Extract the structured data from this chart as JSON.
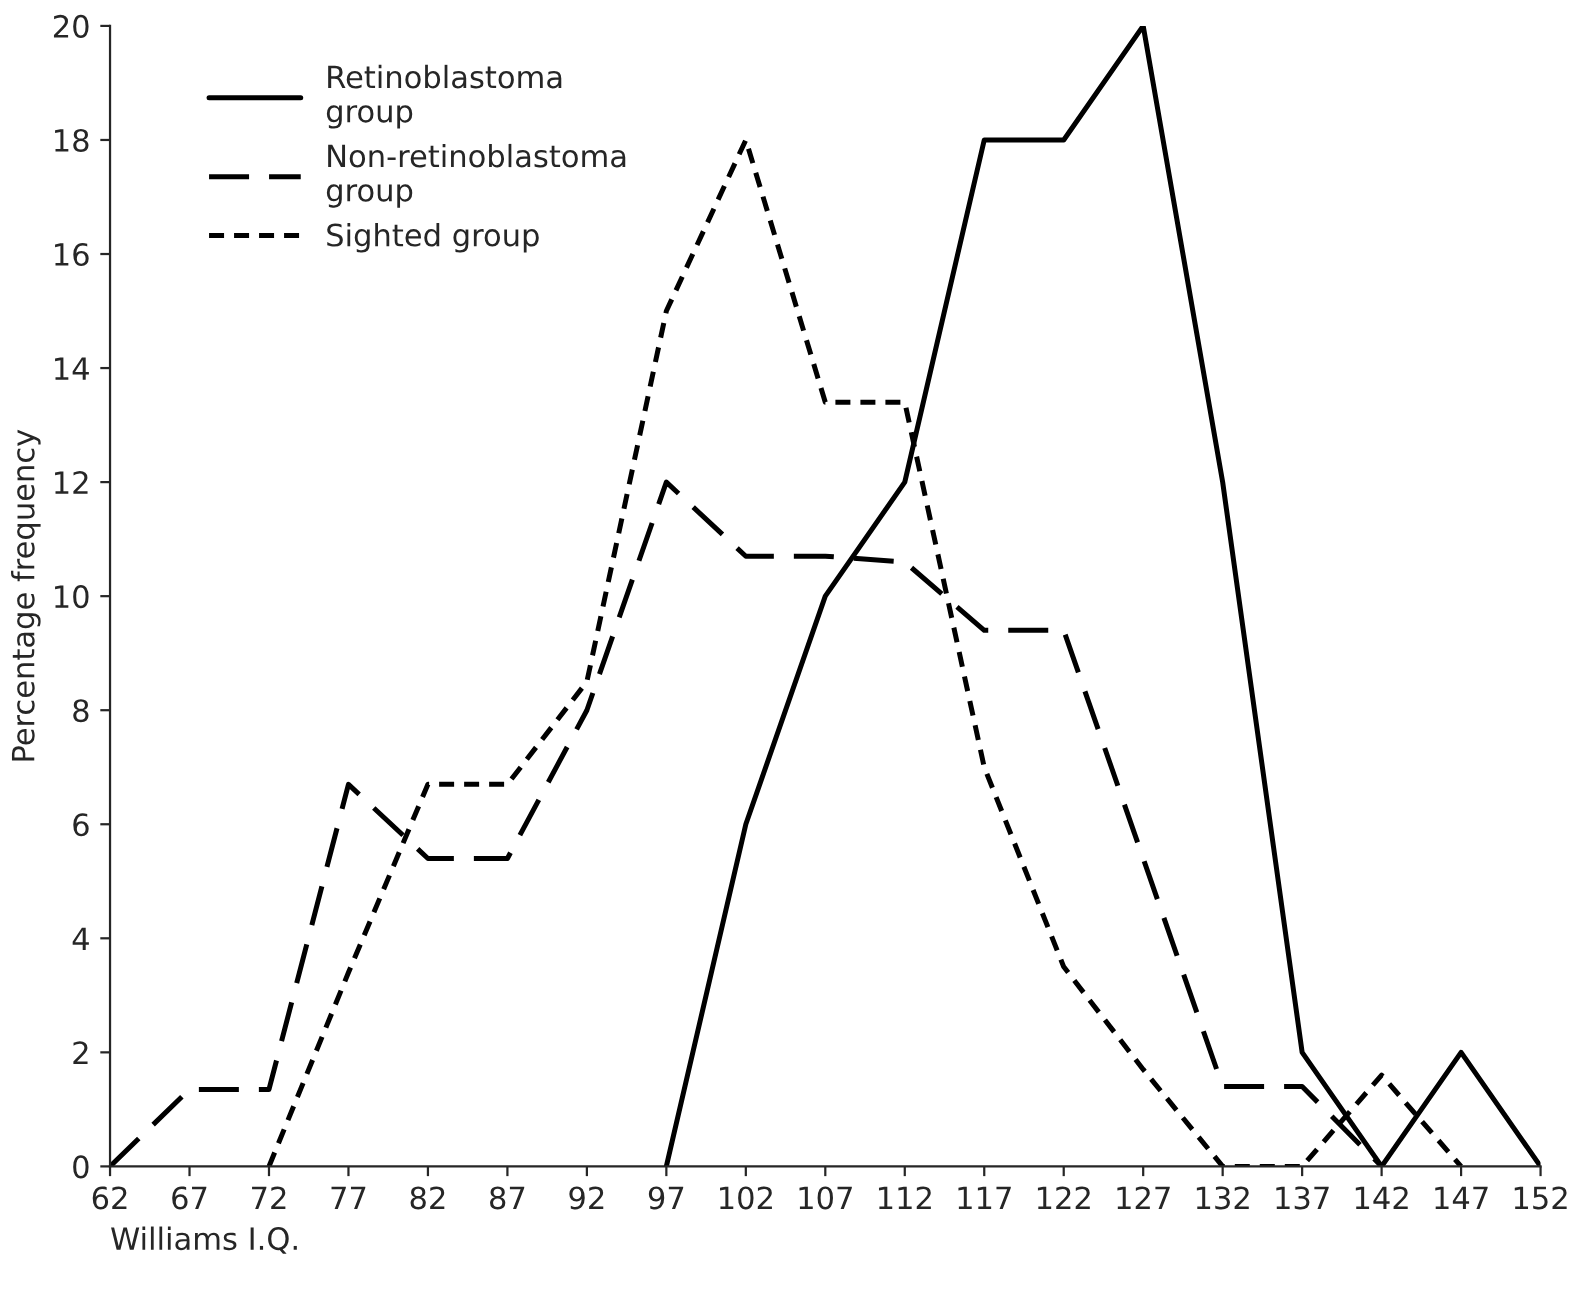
{
  "chart_data": {
    "type": "line",
    "xlabel": "Williams I.Q.",
    "ylabel": "Percentage frequency",
    "x": [
      62,
      67,
      72,
      77,
      82,
      87,
      92,
      97,
      102,
      107,
      112,
      117,
      122,
      127,
      132,
      137,
      142,
      147,
      152
    ],
    "series": [
      {
        "name": "Retinoblastoma\ngroup",
        "color": "#000000",
        "line_style": "solid",
        "values": [
          null,
          null,
          null,
          null,
          null,
          null,
          null,
          0,
          6,
          10,
          12,
          18,
          18,
          20,
          12,
          2,
          0,
          2,
          0
        ]
      },
      {
        "name": "Non-retinoblastoma\ngroup",
        "color": "#000000",
        "line_style": "dashed",
        "values": [
          0,
          1.35,
          1.35,
          6.7,
          5.4,
          5.4,
          8,
          12,
          10.7,
          10.7,
          10.6,
          9.4,
          9.4,
          5.4,
          1.4,
          1.4,
          0,
          null,
          null
        ]
      },
      {
        "name": "Sighted group",
        "color": "#000000",
        "line_style": "dotted",
        "values": [
          null,
          null,
          0,
          3.4,
          6.7,
          6.7,
          8.5,
          15,
          18,
          13.4,
          13.4,
          7,
          3.5,
          1.7,
          0,
          0,
          1.6,
          0,
          null
        ]
      }
    ],
    "xlim": [
      62,
      152
    ],
    "xticks": [
      62,
      67,
      72,
      77,
      82,
      87,
      92,
      97,
      102,
      107,
      112,
      117,
      122,
      127,
      132,
      137,
      142,
      147,
      152
    ],
    "ylim": [
      0,
      20
    ],
    "yticks": [
      0,
      2,
      4,
      6,
      8,
      10,
      12,
      14,
      16,
      18,
      20
    ],
    "grid": false,
    "legend": "top left",
    "marker": "none"
  }
}
